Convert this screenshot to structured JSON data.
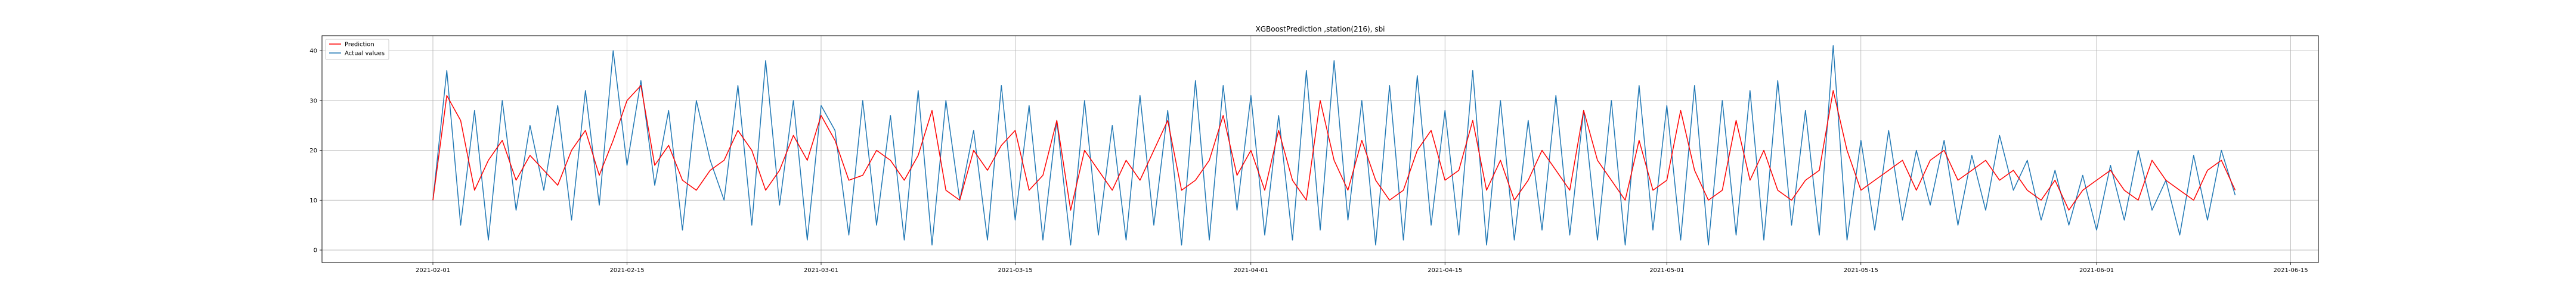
{
  "chart_data": {
    "type": "line",
    "title": "XGBoostPrediction ,station(216), sbi",
    "xlabel": "",
    "ylabel": "",
    "x_range": [
      "2021-01-24",
      "2021-06-17"
    ],
    "ylim": [
      -2.5,
      43
    ],
    "x_ticks": [
      "2021-02-01",
      "2021-02-15",
      "2021-03-01",
      "2021-03-15",
      "2021-04-01",
      "2021-04-15",
      "2021-05-01",
      "2021-05-15",
      "2021-06-01",
      "2021-06-15"
    ],
    "y_ticks": [
      0,
      10,
      20,
      30,
      40
    ],
    "grid": true,
    "legend_position": "top-left",
    "series": [
      {
        "name": "Prediction",
        "color": "#ff0000",
        "x": [
          "2021-02-01",
          "2021-02-02",
          "2021-02-03",
          "2021-02-04",
          "2021-02-05",
          "2021-02-06",
          "2021-02-07",
          "2021-02-08",
          "2021-02-09",
          "2021-02-10",
          "2021-02-11",
          "2021-02-12",
          "2021-02-13",
          "2021-02-14",
          "2021-02-15",
          "2021-02-16",
          "2021-02-17",
          "2021-02-18",
          "2021-02-19",
          "2021-02-20",
          "2021-02-21",
          "2021-02-22",
          "2021-02-23",
          "2021-02-24",
          "2021-02-25",
          "2021-02-26",
          "2021-02-27",
          "2021-02-28",
          "2021-03-01",
          "2021-03-02",
          "2021-03-03",
          "2021-03-04",
          "2021-03-05",
          "2021-03-06",
          "2021-03-07",
          "2021-03-08",
          "2021-03-09",
          "2021-03-10",
          "2021-03-11",
          "2021-03-12",
          "2021-03-13",
          "2021-03-14",
          "2021-03-15",
          "2021-03-16",
          "2021-03-17",
          "2021-03-18",
          "2021-03-19",
          "2021-03-20",
          "2021-03-21",
          "2021-03-22",
          "2021-03-23",
          "2021-03-24",
          "2021-03-25",
          "2021-03-26",
          "2021-03-27",
          "2021-03-28",
          "2021-03-29",
          "2021-03-30",
          "2021-03-31",
          "2021-04-01",
          "2021-04-02",
          "2021-04-03",
          "2021-04-04",
          "2021-04-05",
          "2021-04-06",
          "2021-04-07",
          "2021-04-08",
          "2021-04-09",
          "2021-04-10",
          "2021-04-11",
          "2021-04-12",
          "2021-04-13",
          "2021-04-14",
          "2021-04-15",
          "2021-04-16",
          "2021-04-17",
          "2021-04-18",
          "2021-04-19",
          "2021-04-20",
          "2021-04-21",
          "2021-04-22",
          "2021-04-23",
          "2021-04-24",
          "2021-04-25",
          "2021-04-26",
          "2021-04-27",
          "2021-04-28",
          "2021-04-29",
          "2021-04-30",
          "2021-05-01",
          "2021-05-02",
          "2021-05-03",
          "2021-05-04",
          "2021-05-05",
          "2021-05-06",
          "2021-05-07",
          "2021-05-08",
          "2021-05-09",
          "2021-05-10",
          "2021-05-11",
          "2021-05-12",
          "2021-05-13",
          "2021-05-14",
          "2021-05-15",
          "2021-05-16",
          "2021-05-17",
          "2021-05-18",
          "2021-05-19",
          "2021-05-20",
          "2021-05-21",
          "2021-05-22",
          "2021-05-23",
          "2021-05-24",
          "2021-05-25",
          "2021-05-26",
          "2021-05-27",
          "2021-05-28",
          "2021-05-29",
          "2021-05-30",
          "2021-05-31",
          "2021-06-01",
          "2021-06-02",
          "2021-06-03",
          "2021-06-04",
          "2021-06-05",
          "2021-06-06",
          "2021-06-07",
          "2021-06-08",
          "2021-06-09",
          "2021-06-10",
          "2021-06-11"
        ],
        "values": [
          10,
          31,
          26,
          12,
          18,
          22,
          14,
          19,
          16,
          13,
          20,
          24,
          15,
          22,
          30,
          33,
          17,
          21,
          14,
          12,
          16,
          18,
          24,
          20,
          12,
          16,
          23,
          18,
          27,
          22,
          14,
          15,
          20,
          18,
          14,
          19,
          28,
          12,
          10,
          20,
          16,
          21,
          24,
          12,
          15,
          26,
          8,
          20,
          16,
          12,
          18,
          14,
          20,
          26,
          12,
          14,
          18,
          27,
          15,
          20,
          12,
          24,
          14,
          10,
          30,
          18,
          12,
          22,
          14,
          10,
          12,
          20,
          24,
          14,
          16,
          26,
          12,
          18,
          10,
          14,
          20,
          16,
          12,
          28,
          18,
          14,
          10,
          22,
          12,
          14,
          28,
          16,
          10,
          12,
          26,
          14,
          20,
          12,
          10,
          14,
          16,
          32,
          20,
          12,
          14,
          16,
          18,
          12,
          18,
          20,
          14,
          16,
          18,
          14,
          16,
          12,
          10,
          14,
          8,
          12,
          14,
          16,
          12,
          10,
          18,
          14,
          12,
          10,
          16,
          18,
          12
        ]
      },
      {
        "name": "Actual values",
        "color": "#1f77b4",
        "x": [
          "2021-02-01",
          "2021-02-02",
          "2021-02-03",
          "2021-02-04",
          "2021-02-05",
          "2021-02-06",
          "2021-02-07",
          "2021-02-08",
          "2021-02-09",
          "2021-02-10",
          "2021-02-11",
          "2021-02-12",
          "2021-02-13",
          "2021-02-14",
          "2021-02-15",
          "2021-02-16",
          "2021-02-17",
          "2021-02-18",
          "2021-02-19",
          "2021-02-20",
          "2021-02-21",
          "2021-02-22",
          "2021-02-23",
          "2021-02-24",
          "2021-02-25",
          "2021-02-26",
          "2021-02-27",
          "2021-02-28",
          "2021-03-01",
          "2021-03-02",
          "2021-03-03",
          "2021-03-04",
          "2021-03-05",
          "2021-03-06",
          "2021-03-07",
          "2021-03-08",
          "2021-03-09",
          "2021-03-10",
          "2021-03-11",
          "2021-03-12",
          "2021-03-13",
          "2021-03-14",
          "2021-03-15",
          "2021-03-16",
          "2021-03-17",
          "2021-03-18",
          "2021-03-19",
          "2021-03-20",
          "2021-03-21",
          "2021-03-22",
          "2021-03-23",
          "2021-03-24",
          "2021-03-25",
          "2021-03-26",
          "2021-03-27",
          "2021-03-28",
          "2021-03-29",
          "2021-03-30",
          "2021-03-31",
          "2021-04-01",
          "2021-04-02",
          "2021-04-03",
          "2021-04-04",
          "2021-04-05",
          "2021-04-06",
          "2021-04-07",
          "2021-04-08",
          "2021-04-09",
          "2021-04-10",
          "2021-04-11",
          "2021-04-12",
          "2021-04-13",
          "2021-04-14",
          "2021-04-15",
          "2021-04-16",
          "2021-04-17",
          "2021-04-18",
          "2021-04-19",
          "2021-04-20",
          "2021-04-21",
          "2021-04-22",
          "2021-04-23",
          "2021-04-24",
          "2021-04-25",
          "2021-04-26",
          "2021-04-27",
          "2021-04-28",
          "2021-04-29",
          "2021-04-30",
          "2021-05-01",
          "2021-05-02",
          "2021-05-03",
          "2021-05-04",
          "2021-05-05",
          "2021-05-06",
          "2021-05-07",
          "2021-05-08",
          "2021-05-09",
          "2021-05-10",
          "2021-05-11",
          "2021-05-12",
          "2021-05-13",
          "2021-05-14",
          "2021-05-15",
          "2021-05-16",
          "2021-05-17",
          "2021-05-18",
          "2021-05-19",
          "2021-05-20",
          "2021-05-21",
          "2021-05-22",
          "2021-05-23",
          "2021-05-24",
          "2021-05-25",
          "2021-05-26",
          "2021-05-27",
          "2021-05-28",
          "2021-05-29",
          "2021-05-30",
          "2021-05-31",
          "2021-06-01",
          "2021-06-02",
          "2021-06-03",
          "2021-06-04",
          "2021-06-05",
          "2021-06-06",
          "2021-06-07",
          "2021-06-08",
          "2021-06-09",
          "2021-06-10",
          "2021-06-11"
        ],
        "values": [
          10,
          36,
          5,
          28,
          2,
          30,
          8,
          25,
          12,
          29,
          6,
          32,
          9,
          40,
          17,
          34,
          13,
          28,
          4,
          30,
          18,
          10,
          33,
          5,
          38,
          9,
          30,
          2,
          29,
          24,
          3,
          30,
          5,
          27,
          2,
          32,
          1,
          30,
          10,
          24,
          2,
          33,
          6,
          29,
          2,
          26,
          1,
          30,
          3,
          25,
          2,
          31,
          5,
          28,
          1,
          34,
          2,
          33,
          8,
          31,
          3,
          27,
          2,
          36,
          4,
          38,
          6,
          30,
          1,
          33,
          2,
          35,
          5,
          28,
          3,
          36,
          1,
          30,
          2,
          26,
          4,
          31,
          3,
          28,
          2,
          30,
          1,
          33,
          4,
          29,
          2,
          33,
          1,
          30,
          3,
          32,
          2,
          34,
          5,
          28,
          3,
          41,
          2,
          22,
          4,
          24,
          6,
          20,
          9,
          22,
          5,
          19,
          8,
          23,
          12,
          18,
          6,
          16,
          5,
          15,
          4,
          17,
          6,
          20,
          8,
          14,
          3,
          19,
          6,
          20,
          11
        ]
      }
    ]
  }
}
